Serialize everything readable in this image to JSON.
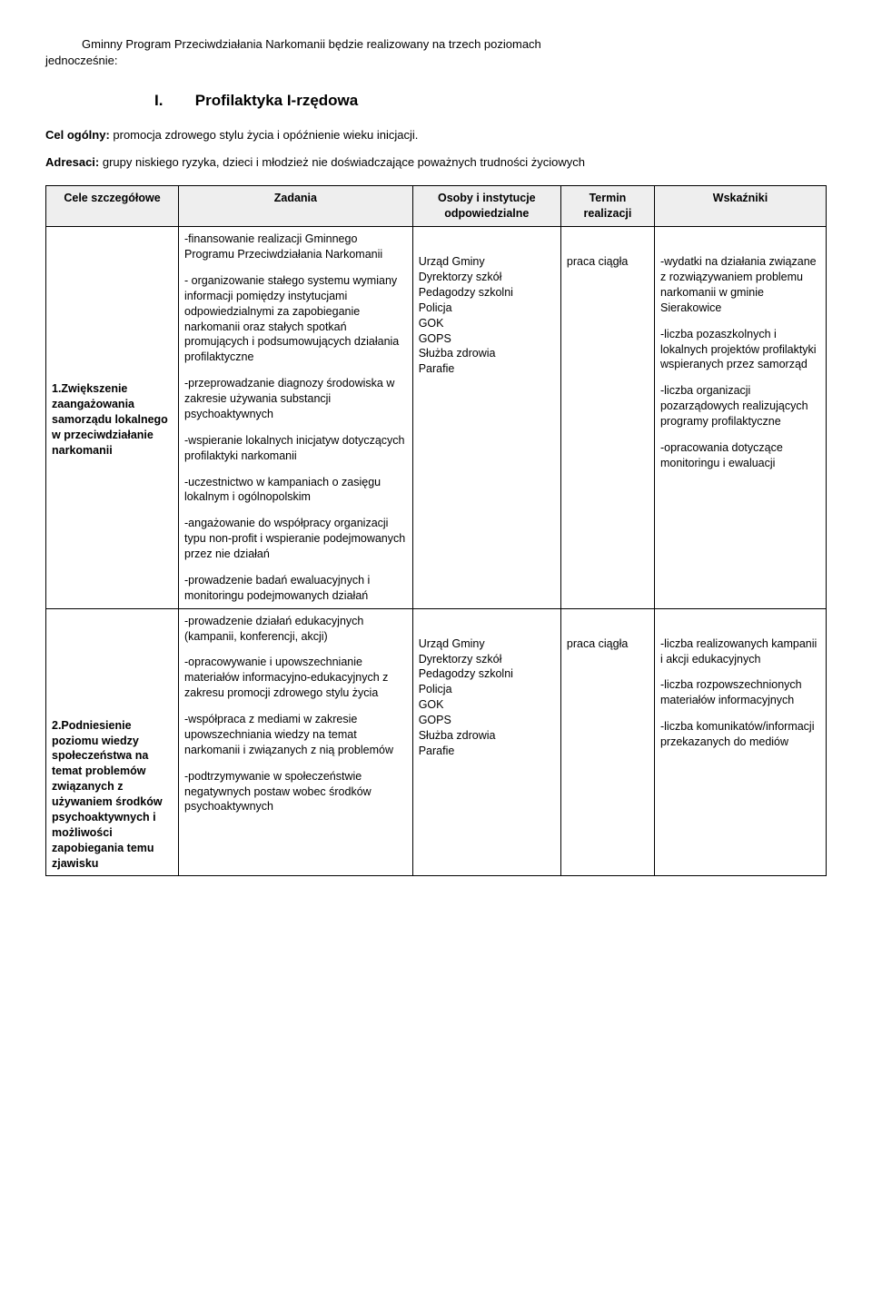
{
  "intro": {
    "line1_indent": "Gminny Program Przeciwdziałania Narkomanii będzie realizowany na trzech poziomach",
    "line2": "jednocześnie:"
  },
  "section": {
    "roman": "I.",
    "title": "Profilaktyka I-rzędowa"
  },
  "cel": {
    "label": "Cel ogólny:",
    "text": " promocja zdrowego stylu życia i opóźnienie wieku inicjacji."
  },
  "adresaci": {
    "label": "Adresaci:",
    "text": " grupy niskiego ryzyka, dzieci i młodzież nie doświadczające poważnych trudności życiowych"
  },
  "table": {
    "headers": {
      "c1": "Cele szczegółowe",
      "c2": "Zadania",
      "c3": "Osoby i instytucje odpowiedzialne",
      "c4": "Termin realizacji",
      "c5": "Wskaźniki"
    },
    "rows": [
      {
        "label": "1.Zwiększenie zaangażowania samorządu lokalnego w przeciwdziałanie narkomanii",
        "zadania": [
          "-finansowanie realizacji Gminnego Programu Przeciwdziałania Narkomanii",
          "- organizowanie stałego systemu wymiany informacji pomiędzy instytucjami odpowiedzialnymi za zapobieganie narkomanii oraz stałych spotkań promujących i podsumowujących działania profilaktyczne",
          "-przeprowadzanie diagnozy środowiska w zakresie używania substancji psychoaktywnych",
          "-wspieranie lokalnych inicjatyw dotyczących profilaktyki narkomanii",
          "-uczestnictwo w kampaniach o zasięgu lokalnym i ogólnopolskim",
          "-angażowanie do współpracy organizacji typu non-profit i wspieranie podejmowanych przez nie działań",
          "-prowadzenie badań ewaluacyjnych i monitoringu podejmowanych działań"
        ],
        "osoby": [
          "Urząd Gminy",
          "Dyrektorzy szkół",
          "Pedagodzy szkolni",
          "Policja",
          "GOK",
          "GOPS",
          "Służba zdrowia",
          "Parafie"
        ],
        "termin": "praca ciągła",
        "wskazniki": [
          "-wydatki na działania związane z rozwiązywaniem problemu narkomanii w gminie Sierakowice",
          "-liczba pozaszkolnych i lokalnych projektów profilaktyki wspieranych przez samorząd",
          "-liczba organizacji pozarządowych realizujących programy profilaktyczne",
          "-opracowania dotyczące monitoringu i ewaluacji"
        ]
      },
      {
        "label": "2.Podniesienie poziomu wiedzy społeczeństwa na temat problemów związanych z używaniem środków psychoaktywnych i możliwości zapobiegania temu zjawisku",
        "zadania": [
          "-prowadzenie działań edukacyjnych (kampanii, konferencji, akcji)",
          "-opracowywanie i upowszechnianie materiałów informacyjno-edukacyjnych z zakresu promocji zdrowego stylu życia",
          "-współpraca z mediami w zakresie upowszechniania wiedzy na temat narkomanii i związanych z nią problemów",
          "-podtrzymywanie w społeczeństwie negatywnych postaw wobec środków psychoaktywnych"
        ],
        "osoby": [
          "Urząd Gminy",
          "Dyrektorzy szkół",
          "Pedagodzy szkolni",
          "Policja",
          "GOK",
          "GOPS",
          "Służba zdrowia",
          "Parafie"
        ],
        "termin": "praca ciągła",
        "wskazniki": [
          "-liczba realizowanych kampanii i akcji edukacyjnych",
          "-liczba rozpowszechnionych materiałów informacyjnych",
          "-liczba komunikatów/informacji przekazanych do mediów"
        ]
      }
    ]
  }
}
